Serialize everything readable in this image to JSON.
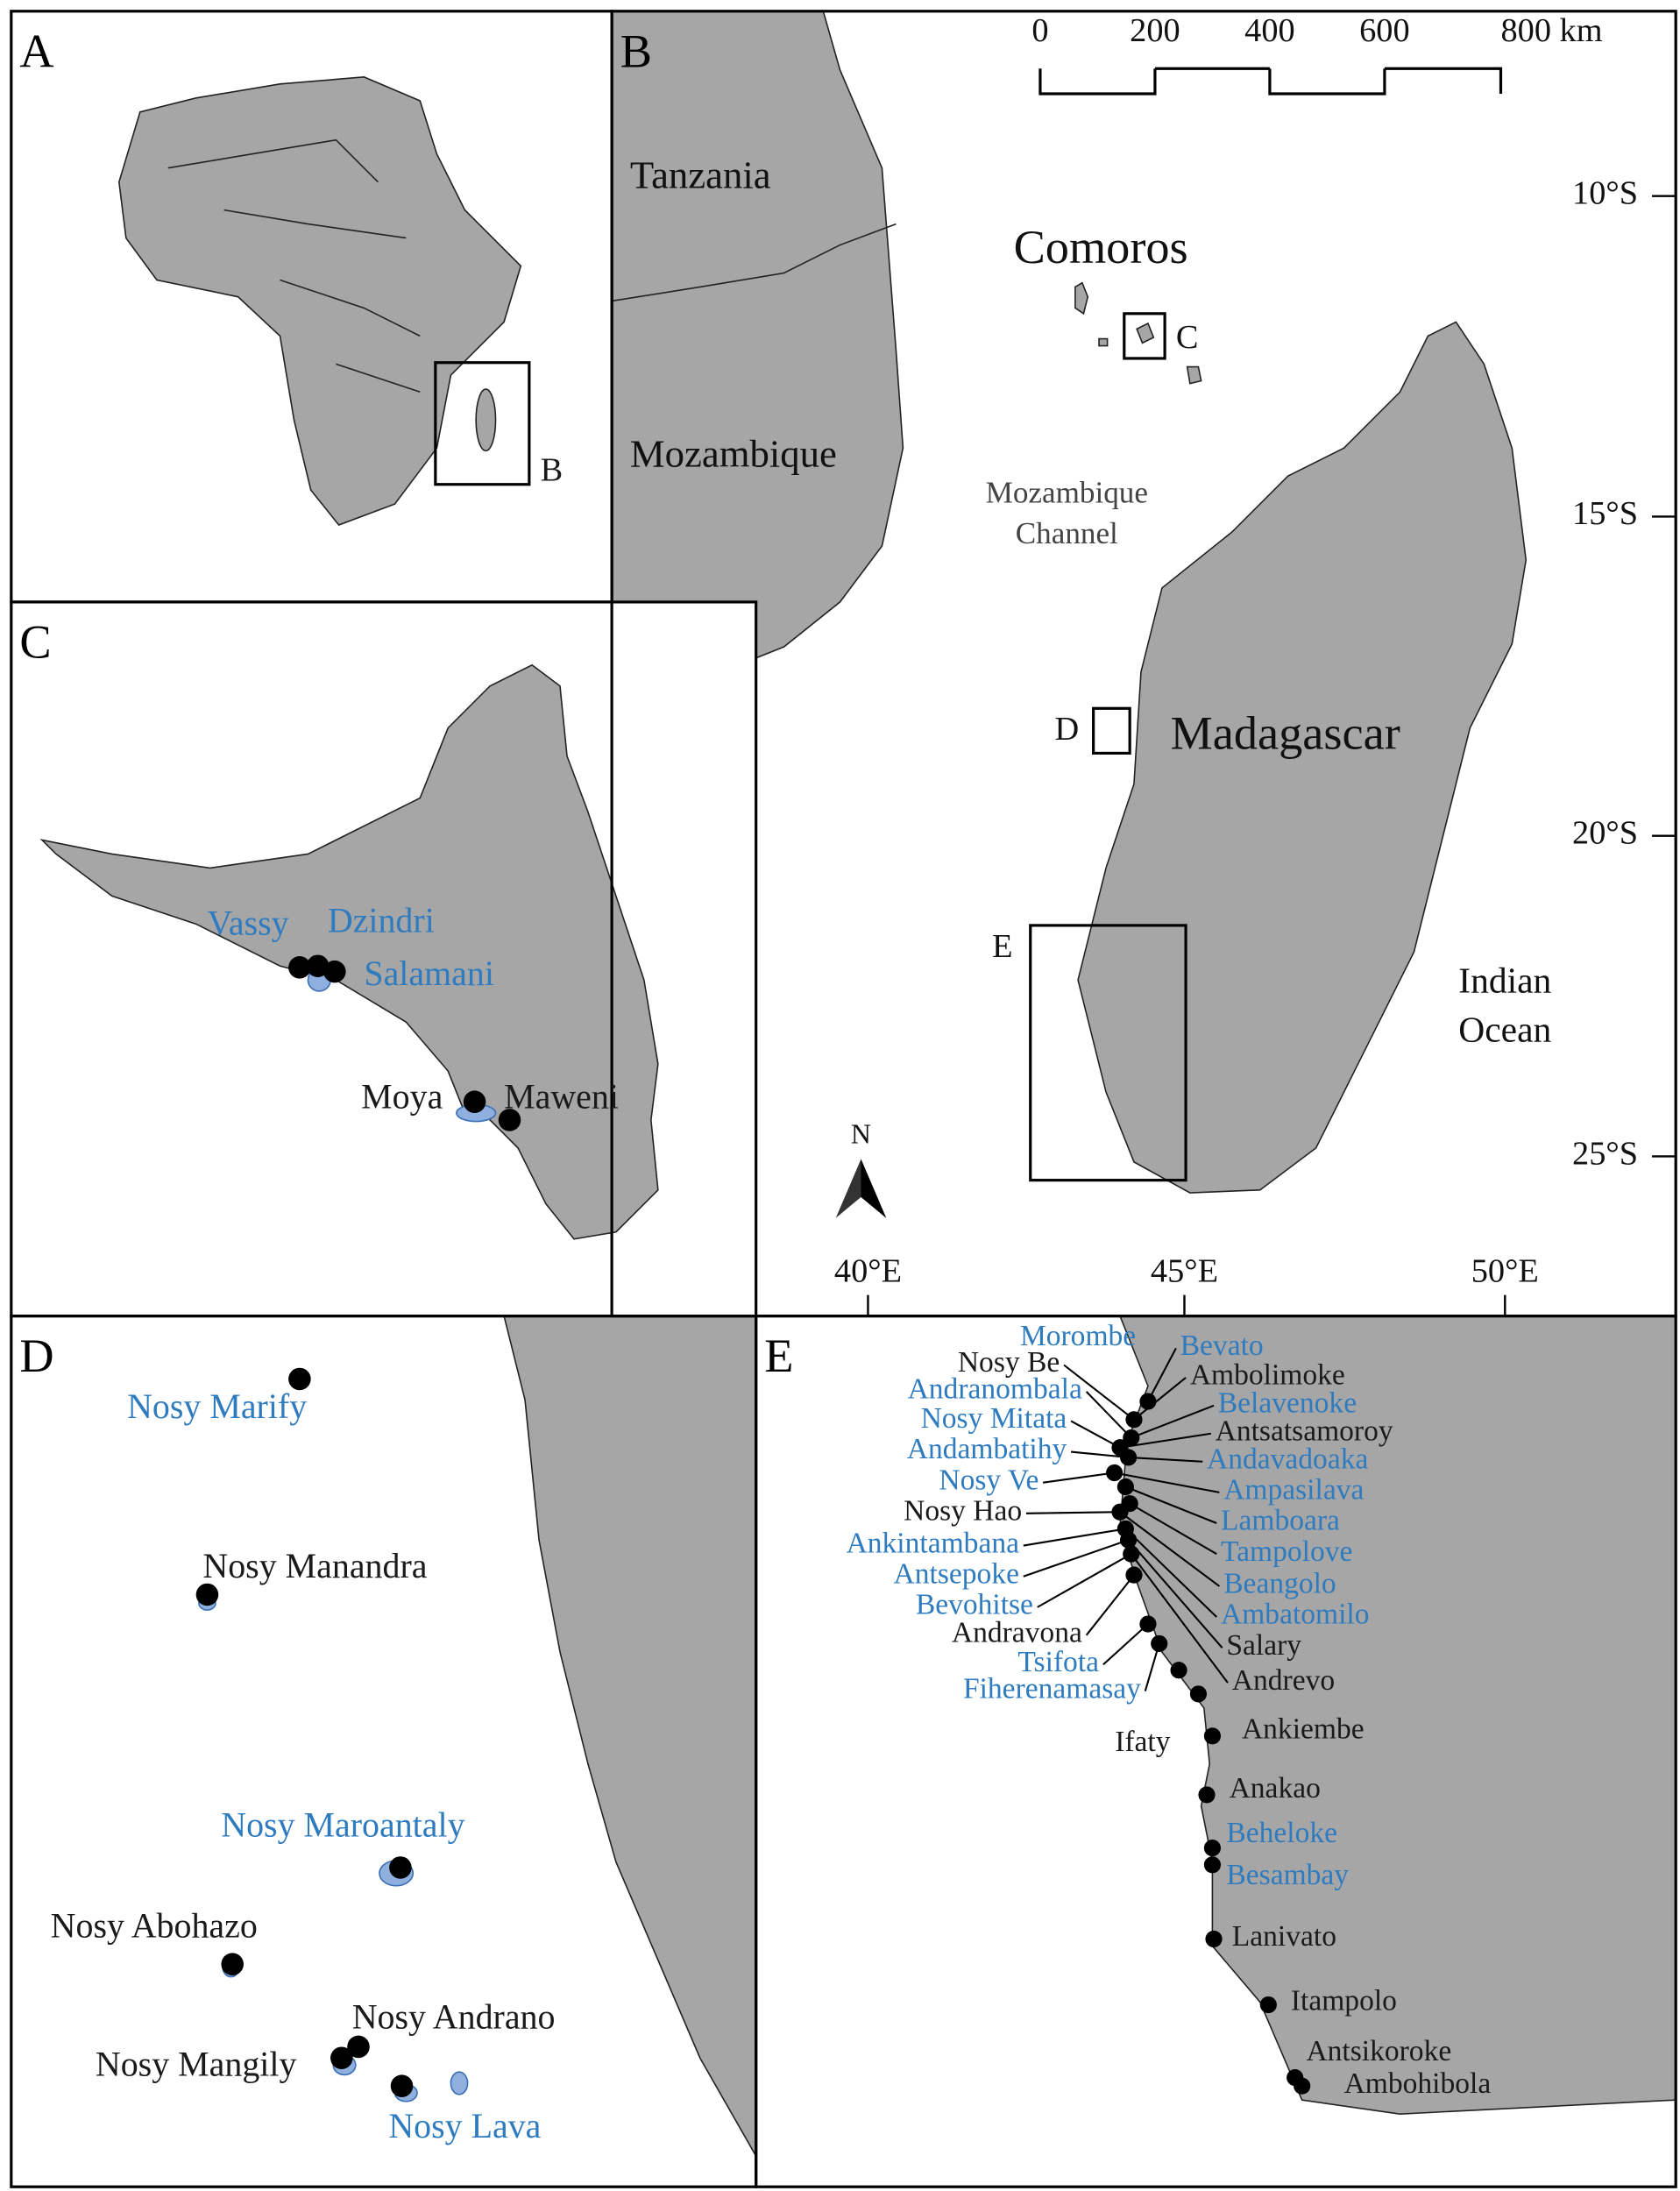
{
  "panels": {
    "a": "A",
    "b": "B",
    "c": "C",
    "d": "D",
    "e": "E"
  },
  "panel_a": {
    "inset_label": "B"
  },
  "panel_b": {
    "countries": [
      "Tanzania",
      "Mozambique",
      "Comoros",
      "Madagascar"
    ],
    "water": {
      "channel": [
        "Mozambique",
        "Channel"
      ],
      "ocean": [
        "Indian",
        "Ocean"
      ]
    },
    "scale_bar": [
      "0",
      "200",
      "400",
      "600",
      "800 km"
    ],
    "latitudes": [
      "10°S",
      "15°S",
      "20°S",
      "25°S"
    ],
    "longitudes": [
      "40°E",
      "45°E",
      "50°E"
    ],
    "insets": [
      "C",
      "D",
      "E"
    ],
    "north": "N"
  },
  "panel_c": {
    "sites": [
      {
        "name": "Vassy",
        "color": "#2e7bbf"
      },
      {
        "name": "Dzindri",
        "color": "#2e7bbf"
      },
      {
        "name": "Salamani",
        "color": "#2e7bbf"
      },
      {
        "name": "Moya",
        "color": "#1a1a1a"
      },
      {
        "name": "Maweni",
        "color": "#1a1a1a"
      }
    ]
  },
  "panel_d": {
    "sites": [
      {
        "name": "Nosy Marify",
        "color": "#2e7bbf"
      },
      {
        "name": "Nosy Manandra",
        "color": "#1a1a1a"
      },
      {
        "name": "Nosy Maroantaly",
        "color": "#2e7bbf"
      },
      {
        "name": "Nosy Abohazo",
        "color": "#1a1a1a"
      },
      {
        "name": "Nosy Andrano",
        "color": "#1a1a1a"
      },
      {
        "name": "Nosy Mangily",
        "color": "#1a1a1a"
      },
      {
        "name": "Nosy Lava",
        "color": "#2e7bbf"
      }
    ]
  },
  "panel_e": {
    "left_sites": [
      {
        "name": "Morombe",
        "color": "#2e7bbf"
      },
      {
        "name": "Nosy Be",
        "color": "#1a1a1a"
      },
      {
        "name": "Andranombala",
        "color": "#2e7bbf"
      },
      {
        "name": "Nosy Mitata",
        "color": "#2e7bbf"
      },
      {
        "name": "Andambatihy",
        "color": "#2e7bbf"
      },
      {
        "name": "Nosy Ve",
        "color": "#2e7bbf"
      },
      {
        "name": "Nosy Hao",
        "color": "#1a1a1a"
      },
      {
        "name": "Ankintambana",
        "color": "#2e7bbf"
      },
      {
        "name": "Antsepoke",
        "color": "#2e7bbf"
      },
      {
        "name": "Bevohitse",
        "color": "#2e7bbf"
      },
      {
        "name": "Andravona",
        "color": "#1a1a1a"
      },
      {
        "name": "Tsifota",
        "color": "#2e7bbf"
      },
      {
        "name": "Fiherenamasay",
        "color": "#2e7bbf"
      },
      {
        "name": "Ifaty",
        "color": "#1a1a1a"
      }
    ],
    "right_sites": [
      {
        "name": "Bevato",
        "color": "#2e7bbf"
      },
      {
        "name": "Ambolimoke",
        "color": "#1a1a1a"
      },
      {
        "name": "Belavenoke",
        "color": "#2e7bbf"
      },
      {
        "name": "Antsatsamoroy",
        "color": "#1a1a1a"
      },
      {
        "name": "Andavadoaka",
        "color": "#2e7bbf"
      },
      {
        "name": "Ampasilava",
        "color": "#2e7bbf"
      },
      {
        "name": "Lamboara",
        "color": "#2e7bbf"
      },
      {
        "name": "Tampolove",
        "color": "#2e7bbf"
      },
      {
        "name": "Beangolo",
        "color": "#2e7bbf"
      },
      {
        "name": "Ambatomilo",
        "color": "#2e7bbf"
      },
      {
        "name": "Salary",
        "color": "#1a1a1a"
      },
      {
        "name": "Andrevo",
        "color": "#1a1a1a"
      },
      {
        "name": "Ankiembe",
        "color": "#1a1a1a"
      },
      {
        "name": "Anakao",
        "color": "#1a1a1a"
      },
      {
        "name": "Beheloke",
        "color": "#2e7bbf"
      },
      {
        "name": "Besambay",
        "color": "#2e7bbf"
      },
      {
        "name": "Lanivato",
        "color": "#1a1a1a"
      },
      {
        "name": "Itampolo",
        "color": "#1a1a1a"
      },
      {
        "name": "Antsikoroke",
        "color": "#1a1a1a"
      },
      {
        "name": "Ambohibola",
        "color": "#1a1a1a"
      }
    ]
  }
}
